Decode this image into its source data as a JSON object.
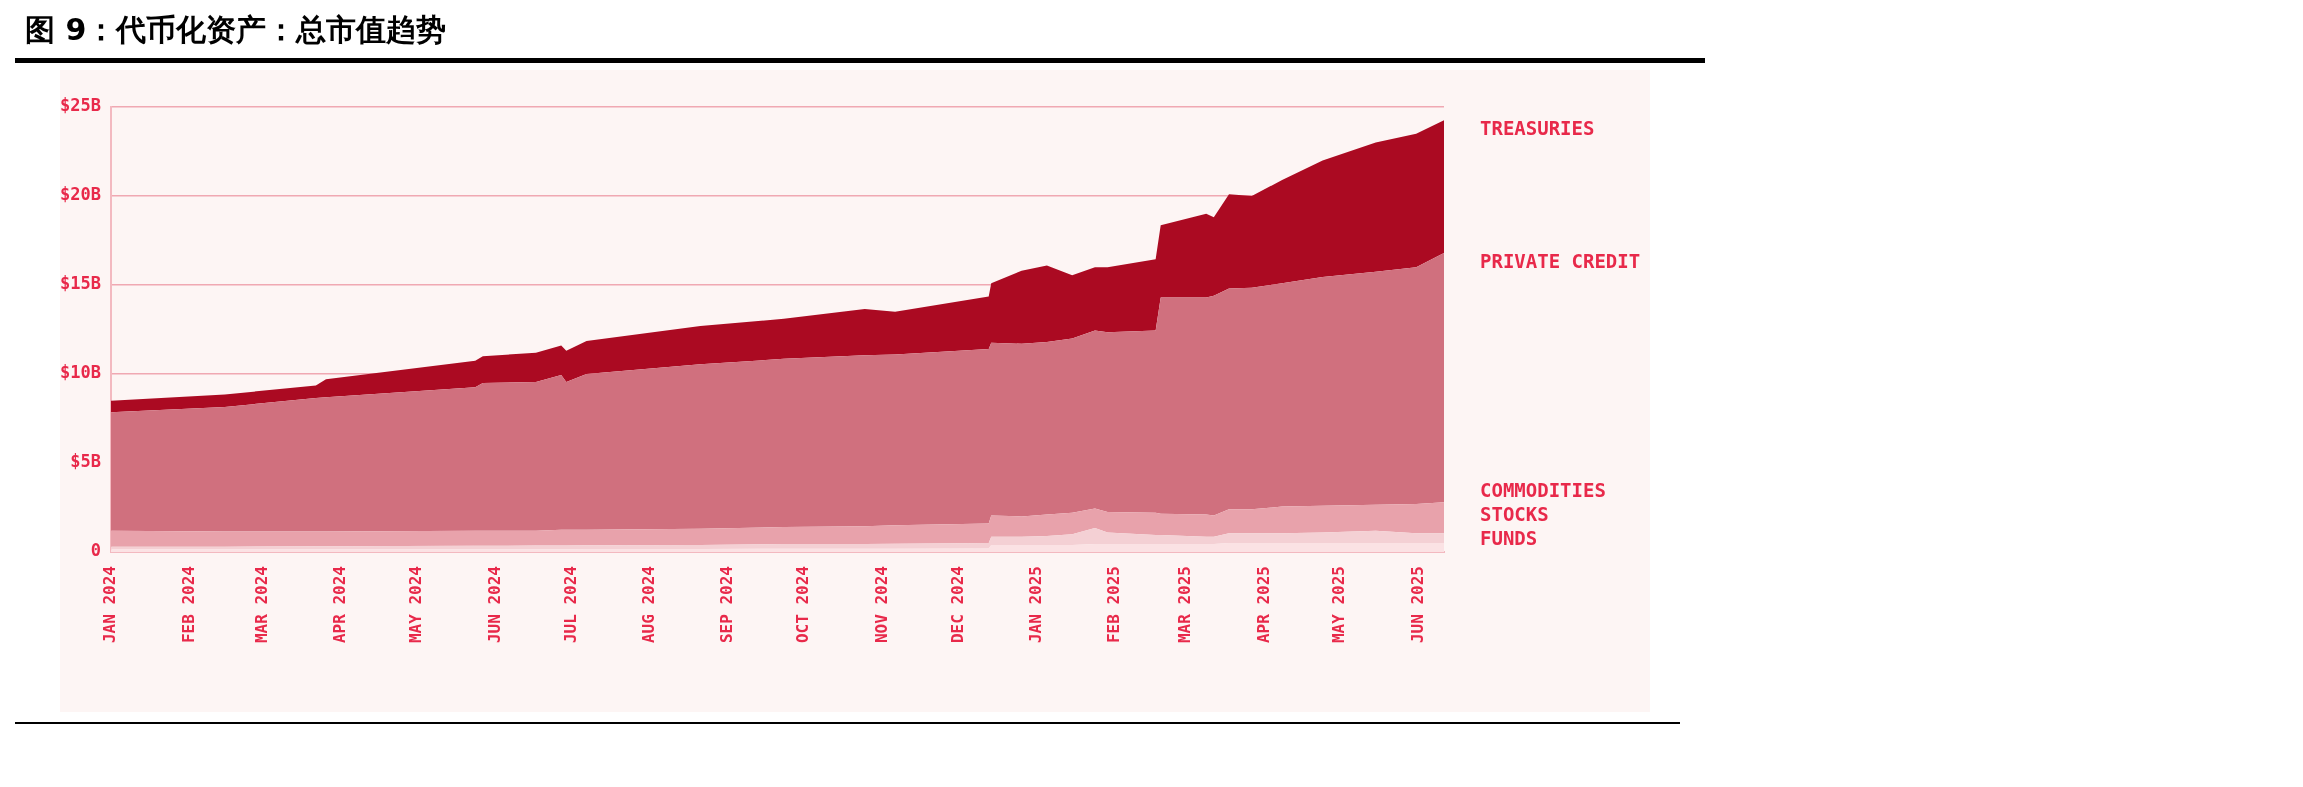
{
  "chart_data": {
    "type": "area",
    "title": "图 9：代币化资产：总市值趋势",
    "stacked": true,
    "grid": "y",
    "x": [
      "2024-01-01",
      "2024-02-15",
      "2024-03-22",
      "2024-03-26",
      "2024-05-24",
      "2024-05-27",
      "2024-06-17",
      "2024-06-27",
      "2024-06-29",
      "2024-07-07",
      "2024-08-21",
      "2024-09-23",
      "2024-10-25",
      "2024-11-06",
      "2024-12-13",
      "2024-12-14",
      "2024-12-26",
      "2025-01-05",
      "2025-01-15",
      "2025-01-24",
      "2025-01-29",
      "2025-02-17",
      "2025-02-19",
      "2025-03-09",
      "2025-03-12",
      "2025-03-18",
      "2025-03-27",
      "2025-04-08",
      "2025-04-24",
      "2025-05-15",
      "2025-05-31",
      "2025-06-11"
    ],
    "series": [
      {
        "name": "FUNDS",
        "color": "#fbe2e4",
        "values": [
          0.15,
          0.15,
          0.15,
          0.15,
          0.16,
          0.16,
          0.16,
          0.16,
          0.16,
          0.17,
          0.17,
          0.18,
          0.18,
          0.18,
          0.2,
          0.4,
          0.4,
          0.4,
          0.4,
          0.45,
          0.45,
          0.45,
          0.45,
          0.45,
          0.45,
          0.5,
          0.5,
          0.5,
          0.5,
          0.5,
          0.5,
          0.5
        ]
      },
      {
        "name": "STOCKS",
        "color": "#f4d0d4",
        "values": [
          0.15,
          0.15,
          0.17,
          0.17,
          0.19,
          0.19,
          0.2,
          0.21,
          0.21,
          0.21,
          0.23,
          0.27,
          0.27,
          0.29,
          0.3,
          0.45,
          0.45,
          0.5,
          0.6,
          0.9,
          0.65,
          0.5,
          0.5,
          0.4,
          0.4,
          0.55,
          0.55,
          0.55,
          0.6,
          0.7,
          0.55,
          0.55
        ]
      },
      {
        "name": "COMMODITIES",
        "color": "#e8a2ab",
        "values": [
          0.9,
          0.85,
          0.83,
          0.83,
          0.85,
          0.85,
          0.84,
          0.88,
          0.88,
          0.87,
          0.9,
          0.95,
          1.0,
          1.03,
          1.1,
          1.2,
          1.15,
          1.2,
          1.2,
          1.1,
          1.15,
          1.25,
          1.2,
          1.25,
          1.2,
          1.35,
          1.35,
          1.5,
          1.5,
          1.45,
          1.65,
          1.75
        ]
      },
      {
        "name": "PRIVATE CREDIT",
        "color": "#d0707e",
        "values": [
          6.65,
          7.0,
          7.5,
          7.55,
          8.05,
          8.3,
          8.35,
          8.7,
          8.3,
          8.75,
          9.25,
          9.45,
          9.6,
          9.6,
          9.8,
          9.7,
          9.7,
          9.7,
          9.8,
          10.0,
          10.1,
          10.25,
          12.15,
          12.2,
          12.35,
          12.4,
          12.45,
          12.55,
          12.85,
          13.1,
          13.3,
          14.0
        ]
      },
      {
        "name": "TREASURIES",
        "color": "#ab0a22",
        "values": [
          0.65,
          0.7,
          0.7,
          1.0,
          1.5,
          1.5,
          1.65,
          1.65,
          1.75,
          1.85,
          2.15,
          2.25,
          2.6,
          2.4,
          2.95,
          3.35,
          4.1,
          4.3,
          3.55,
          3.55,
          3.65,
          4.0,
          4.05,
          4.7,
          4.4,
          5.3,
          5.15,
          5.8,
          6.55,
          7.25,
          7.5,
          7.45
        ]
      }
    ],
    "xlim": [
      "2024-01-01",
      "2025-06-11"
    ],
    "xticks": [
      {
        "value": "2024-01-01",
        "label": "JAN 2024"
      },
      {
        "value": "2024-02-01",
        "label": "FEB 2024"
      },
      {
        "value": "2024-03-01",
        "label": "MAR 2024"
      },
      {
        "value": "2024-04-01",
        "label": "APR 2024"
      },
      {
        "value": "2024-05-01",
        "label": "MAY 2024"
      },
      {
        "value": "2024-06-01",
        "label": "JUN 2024"
      },
      {
        "value": "2024-07-01",
        "label": "JUL 2024"
      },
      {
        "value": "2024-08-01",
        "label": "AUG 2024"
      },
      {
        "value": "2024-09-01",
        "label": "SEP 2024"
      },
      {
        "value": "2024-10-01",
        "label": "OCT 2024"
      },
      {
        "value": "2024-11-01",
        "label": "NOV 2024"
      },
      {
        "value": "2024-12-01",
        "label": "DEC 2024"
      },
      {
        "value": "2025-01-01",
        "label": "JAN 2025"
      },
      {
        "value": "2025-02-01",
        "label": "FEB 2025"
      },
      {
        "value": "2025-03-01",
        "label": "MAR 2025"
      },
      {
        "value": "2025-04-01",
        "label": "APR 2025"
      },
      {
        "value": "2025-05-01",
        "label": "MAY 2025"
      },
      {
        "value": "2025-06-01",
        "label": "JUN 2025"
      }
    ],
    "ylim": [
      0,
      25
    ],
    "yticks": [
      0,
      {
        "value": 5,
        "label": "$5B"
      },
      {
        "value": 10,
        "label": "$10B"
      },
      {
        "value": 15,
        "label": "$15B"
      },
      {
        "value": 20,
        "label": "$20B"
      },
      {
        "value": 25,
        "label": "$25B"
      }
    ]
  }
}
